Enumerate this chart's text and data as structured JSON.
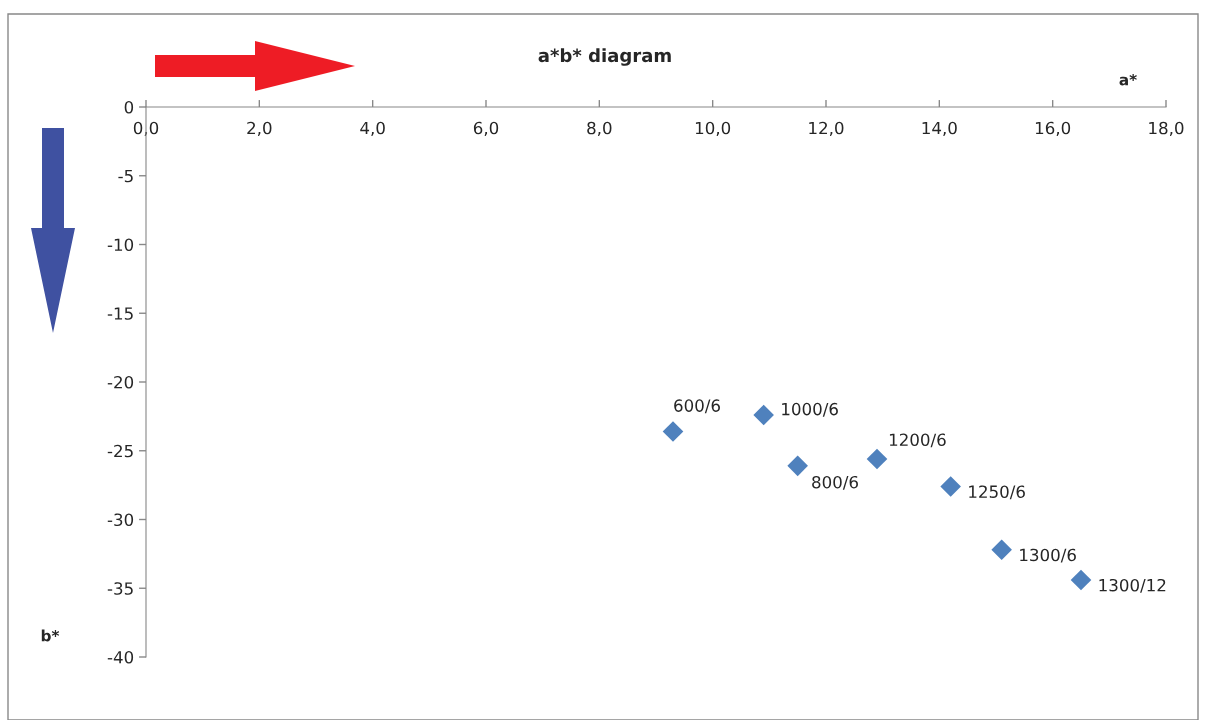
{
  "chart_data": {
    "type": "scatter",
    "title": "a*b* diagram",
    "xlabel": "a*",
    "ylabel": "b*",
    "x": [
      9.3,
      10.9,
      11.5,
      12.9,
      14.2,
      15.1,
      16.5
    ],
    "values": [
      -23.6,
      -22.4,
      -26.1,
      -25.6,
      -27.6,
      -32.2,
      -34.4
    ],
    "color": "#4f81bd",
    "marker": "diamond",
    "grid": false,
    "xlim": [
      0,
      18
    ],
    "ylim": [
      -40,
      0
    ],
    "xticks": [
      {
        "value": 0,
        "label": "0,0"
      },
      {
        "value": 2,
        "label": "2,0"
      },
      {
        "value": 4,
        "label": "4,0"
      },
      {
        "value": 6,
        "label": "6,0"
      },
      {
        "value": 8,
        "label": "8,0"
      },
      {
        "value": 10,
        "label": "10,0"
      },
      {
        "value": 12,
        "label": "12,0"
      },
      {
        "value": 14,
        "label": "14,0"
      },
      {
        "value": 16,
        "label": "16,0"
      },
      {
        "value": 18,
        "label": "18,0"
      }
    ],
    "yticks": [
      0,
      -5,
      -10,
      -15,
      -20,
      -25,
      -30,
      -35,
      -40
    ],
    "annotations": [
      {
        "text": "600/6",
        "x": 9.3,
        "y": -23.6
      },
      {
        "text": "1000/6",
        "x": 10.9,
        "y": -22.4
      },
      {
        "text": "800/6",
        "x": 11.5,
        "y": -26.1
      },
      {
        "text": "1200/6",
        "x": 12.9,
        "y": -25.6
      },
      {
        "text": "1250/6",
        "x": 14.2,
        "y": -27.6
      },
      {
        "text": "1300/6",
        "x": 15.1,
        "y": -32.2
      },
      {
        "text": "1300/12",
        "x": 16.5,
        "y": -34.4
      }
    ]
  }
}
